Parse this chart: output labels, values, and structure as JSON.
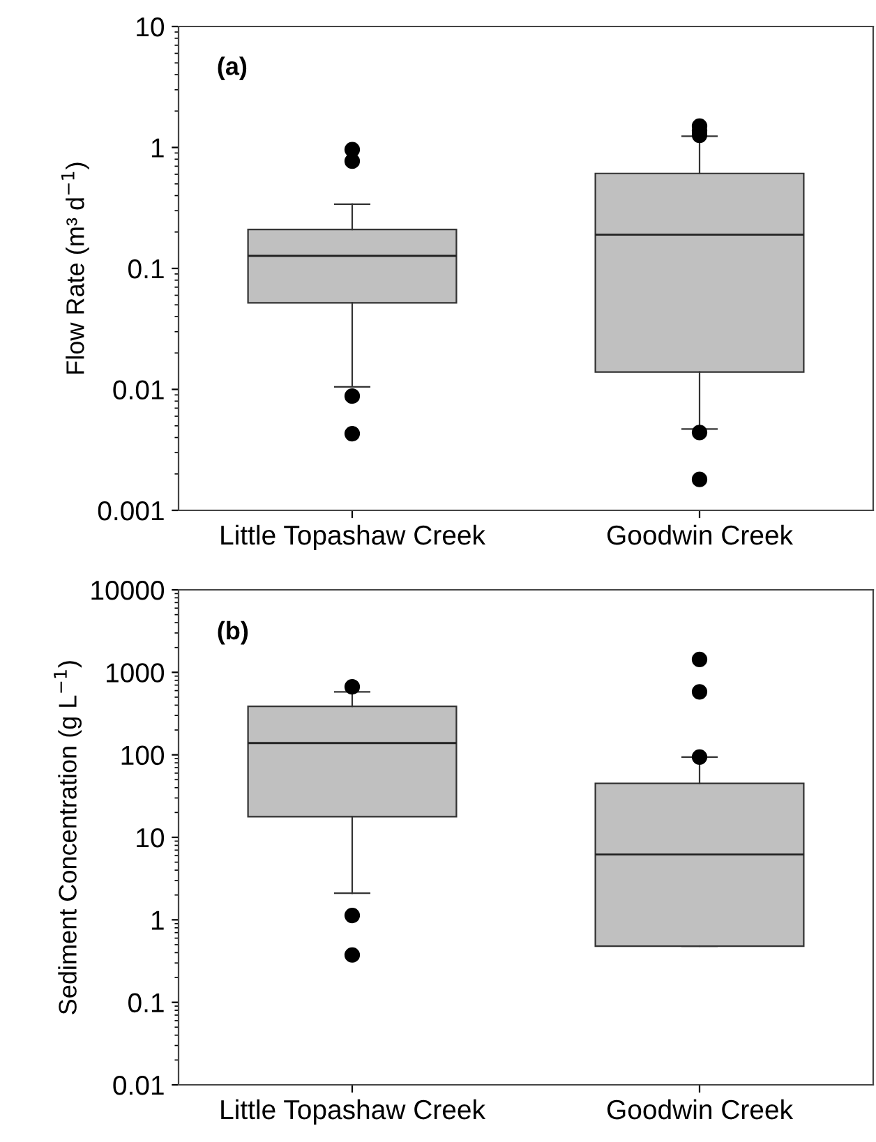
{
  "chart_data": [
    {
      "type": "box",
      "categories": [
        "Little Topashaw Creek",
        "Goodwin Creek"
      ],
      "ylabel": "Flow Rate (m³ d$^{−1}$)",
      "annotations": [
        "(a)"
      ],
      "log": true,
      "ylim": [
        0.001,
        10
      ],
      "yticks": [
        0.001,
        0.01,
        0.1,
        1,
        10
      ],
      "grid": false,
      "color": "#c0c0c0",
      "boxes": [
        {
          "low": 0.0105,
          "q1": 0.052,
          "median": 0.127,
          "q3": 0.21,
          "high": 0.34,
          "outliers": [
            0.96,
            0.77,
            0.0088,
            0.0043
          ]
        },
        {
          "low": 0.0047,
          "q1": 0.0139,
          "median": 0.19,
          "q3": 0.61,
          "high": 1.24,
          "outliers": [
            1.5,
            1.37,
            1.26,
            0.0044,
            0.0018
          ]
        }
      ]
    },
    {
      "type": "box",
      "categories": [
        "Little Topashaw Creek",
        "Goodwin Creek"
      ],
      "ylabel": "Sediment Concentration (g L$^{−1}$)",
      "annotations": [
        "(b)"
      ],
      "log": true,
      "ylim": [
        0.01,
        10000
      ],
      "yticks": [
        0.01,
        0.1,
        1,
        10,
        100,
        1000,
        10000
      ],
      "grid": false,
      "color": "#c0c0c0",
      "boxes": [
        {
          "low": 2.1,
          "q1": 17.8,
          "median": 139,
          "q3": 387,
          "high": 580,
          "outliers": [
            667,
            1.13,
            0.375
          ]
        },
        {
          "low": 0.48,
          "q1": 0.48,
          "median": 6.2,
          "q3": 45,
          "high": 94,
          "outliers": [
            1430,
            580,
            94
          ]
        }
      ]
    }
  ]
}
